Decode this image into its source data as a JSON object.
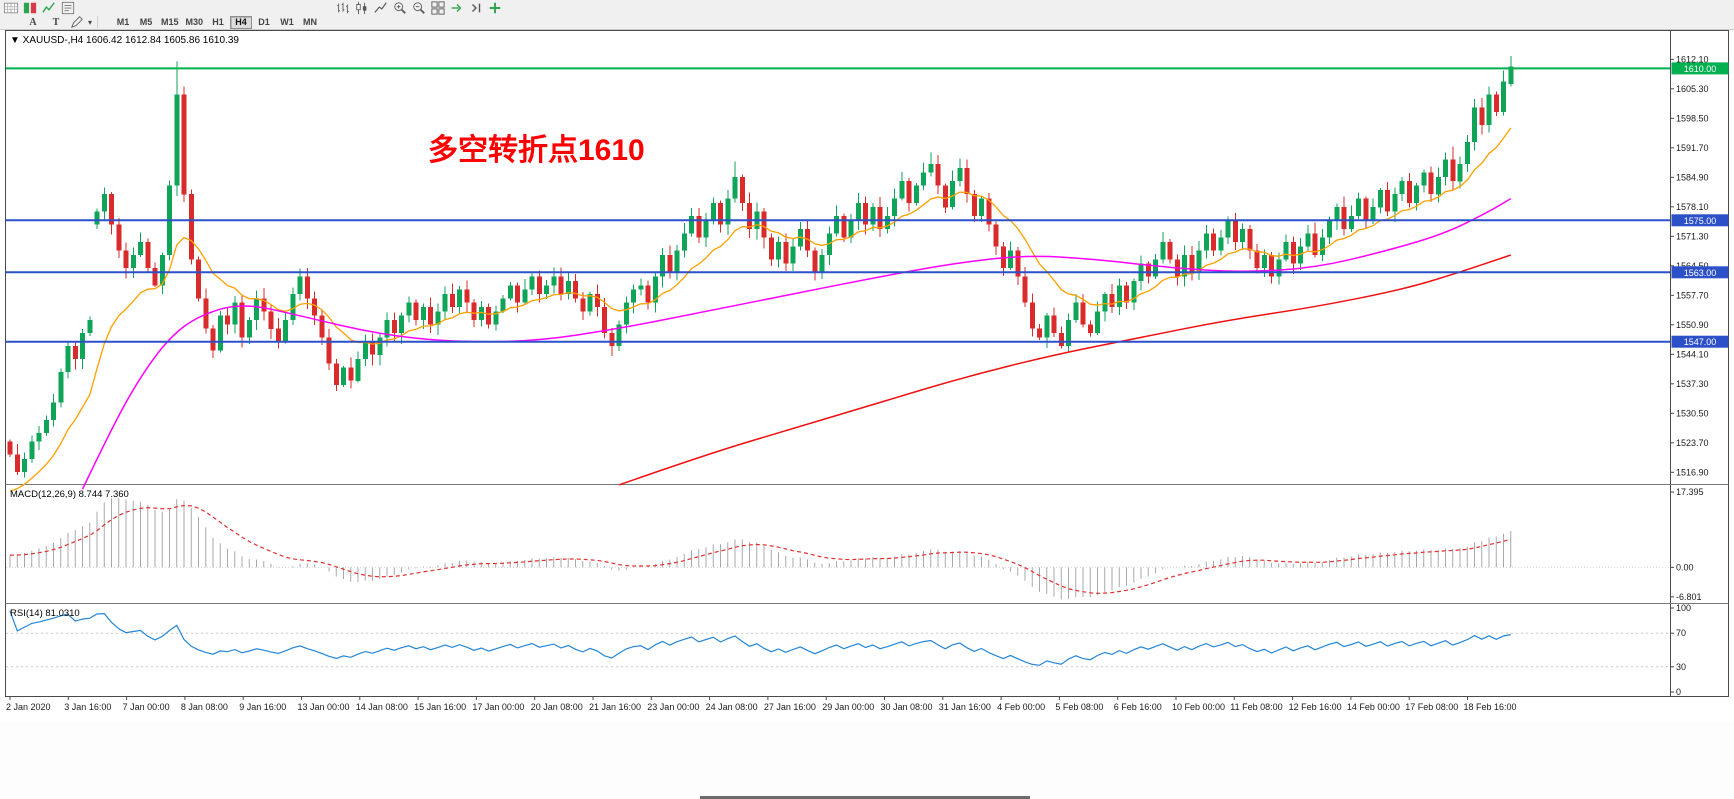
{
  "toolbar": {
    "row1_left": [
      "layout-grid",
      "new-order",
      "market-watch",
      "navigator"
    ],
    "row1_right": [
      "bar-chart",
      "candlestick-chart",
      "line-chart",
      "zoom-in",
      "zoom-out",
      "tile-windows",
      "auto-scroll",
      "chart-shift",
      "indicators"
    ],
    "text_tools": [
      {
        "id": "text-label-tool",
        "label": "A"
      },
      {
        "id": "text-tool",
        "label": "T"
      }
    ],
    "draw_tool_icon": "draw-pen",
    "dropdown_glyph": "▾",
    "timeframes": [
      "M1",
      "M5",
      "M15",
      "M30",
      "H1",
      "H4",
      "D1",
      "W1",
      "MN"
    ],
    "selected_timeframe": "H4"
  },
  "chart_data": {
    "type": "candlestick",
    "symbol": "XAUUSD",
    "timeframe": "H4",
    "info": {
      "marker": "▼",
      "symbol": "XAUUSD-,H4",
      "open": "1606.42",
      "high": "1612.84",
      "low": "1605.86",
      "close": "1610.39"
    },
    "annotation": {
      "text": "多空转折点1610",
      "color": "#ff0000"
    },
    "ylim": [
      1514.2,
      1618.4
    ],
    "price_ticks": [
      "1612.10",
      "1605.30",
      "1598.50",
      "1591.70",
      "1584.90",
      "1578.10",
      "1571.30",
      "1564.50",
      "1557.70",
      "1550.90",
      "1544.10",
      "1537.30",
      "1530.50",
      "1523.70",
      "1516.90"
    ],
    "hlines": [
      {
        "label": "1610.00",
        "value": 1610.0,
        "color": "green"
      },
      {
        "label": "1575.00",
        "value": 1575.0,
        "color": "blue"
      },
      {
        "label": "1563.00",
        "value": 1563.0,
        "color": "blue"
      },
      {
        "label": "1547.00",
        "value": 1547.0,
        "color": "blue"
      }
    ],
    "x_labels": [
      "2 Jan 2020",
      "3 Jan 16:00",
      "7 Jan 00:00",
      "8 Jan 08:00",
      "9 Jan 16:00",
      "13 Jan 00:00",
      "14 Jan 08:00",
      "15 Jan 16:00",
      "17 Jan 00:00",
      "20 Jan 08:00",
      "21 Jan 16:00",
      "23 Jan 00:00",
      "24 Jan 08:00",
      "27 Jan 16:00",
      "29 Jan 00:00",
      "30 Jan 08:00",
      "31 Jan 16:00",
      "4 Feb 00:00",
      "5 Feb 08:00",
      "6 Feb 16:00",
      "10 Feb 00:00",
      "11 Feb 08:00",
      "12 Feb 16:00",
      "14 Feb 00:00",
      "17 Feb 08:00",
      "18 Feb 16:00"
    ],
    "closes": [
      1521,
      1517,
      1520,
      1524,
      1526,
      1529,
      1533,
      1540,
      1546,
      1543,
      1549,
      1552,
      1577,
      1581,
      1574,
      1568,
      1564,
      1567,
      1570,
      1564,
      1560,
      1567,
      1583,
      1604,
      1581,
      1566,
      1557,
      1550,
      1545,
      1553,
      1551,
      1556,
      1548,
      1552,
      1557,
      1554,
      1550,
      1547,
      1552,
      1558,
      1562,
      1557,
      1553,
      1548,
      1542,
      1537,
      1541,
      1538,
      1543,
      1547,
      1544,
      1548,
      1552,
      1549,
      1553,
      1556,
      1552,
      1555,
      1551,
      1554,
      1558,
      1555,
      1559,
      1556,
      1552,
      1555,
      1551,
      1554,
      1557,
      1560,
      1556,
      1559,
      1562,
      1558,
      1560,
      1562,
      1558,
      1561,
      1557,
      1554,
      1558,
      1555,
      1549,
      1546,
      1551,
      1556,
      1559,
      1560,
      1556,
      1562,
      1567,
      1563,
      1568,
      1572,
      1576,
      1571,
      1575,
      1579,
      1574,
      1580,
      1585,
      1579,
      1573,
      1577,
      1571,
      1566,
      1570,
      1565,
      1569,
      1573,
      1568,
      1563,
      1567,
      1572,
      1576,
      1571,
      1575,
      1579,
      1574,
      1578,
      1573,
      1576,
      1580,
      1584,
      1579,
      1583,
      1586,
      1588,
      1583,
      1578,
      1584,
      1587,
      1581,
      1576,
      1580,
      1574,
      1569,
      1564,
      1568,
      1562,
      1556,
      1550,
      1548,
      1553,
      1549,
      1546,
      1552,
      1556,
      1551,
      1549,
      1554,
      1558,
      1555,
      1560,
      1556,
      1561,
      1565,
      1562,
      1566,
      1570,
      1566,
      1562,
      1567,
      1563,
      1568,
      1572,
      1568,
      1571,
      1575,
      1570,
      1573,
      1568,
      1564,
      1567,
      1562,
      1566,
      1570,
      1565,
      1569,
      1572,
      1567,
      1571,
      1575,
      1578,
      1573,
      1576,
      1580,
      1575,
      1578,
      1582,
      1577,
      1581,
      1584,
      1579,
      1583,
      1586,
      1581,
      1585,
      1589,
      1584,
      1588,
      1593,
      1601,
      1597,
      1604,
      1600,
      1607,
      1610.4
    ],
    "overrides": {
      "1": {
        "low": 1516.3
      },
      "12": {
        "open": 1574
      },
      "23": {
        "high": 1611.6
      },
      "45": {
        "low": 1535.6
      },
      "47": {
        "low": 1536.2
      },
      "100": {
        "high": 1588.6
      },
      "127": {
        "high": 1590.6
      },
      "131": {
        "high": 1589.2
      },
      "199": {
        "high": 1592.0
      },
      "207": {
        "open": 1606.42,
        "high": 1612.84,
        "low": 1605.86
      }
    },
    "pre_history": {
      "start": 1448,
      "end": 1515,
      "bars": 150,
      "wave": 3
    },
    "ma": {
      "orange_period": 13,
      "magenta_points": [
        [
          10,
          1513
        ],
        [
          14,
          1527
        ],
        [
          18,
          1539
        ],
        [
          22,
          1548
        ],
        [
          26,
          1553
        ],
        [
          32,
          1556
        ],
        [
          40,
          1553
        ],
        [
          50,
          1549
        ],
        [
          60,
          1547
        ],
        [
          72,
          1547
        ],
        [
          84,
          1550
        ],
        [
          96,
          1554
        ],
        [
          108,
          1558
        ],
        [
          120,
          1562
        ],
        [
          130,
          1565
        ],
        [
          140,
          1567
        ],
        [
          150,
          1566
        ],
        [
          160,
          1564
        ],
        [
          170,
          1563
        ],
        [
          180,
          1564
        ],
        [
          190,
          1568
        ],
        [
          198,
          1572
        ],
        [
          204,
          1577
        ],
        [
          207,
          1580
        ]
      ],
      "red_points": [
        [
          84,
          1514
        ],
        [
          96,
          1521
        ],
        [
          108,
          1527
        ],
        [
          120,
          1533
        ],
        [
          132,
          1539
        ],
        [
          144,
          1544
        ],
        [
          156,
          1548
        ],
        [
          168,
          1552
        ],
        [
          180,
          1555
        ],
        [
          192,
          1559
        ],
        [
          200,
          1563
        ],
        [
          207,
          1567
        ]
      ]
    },
    "macd": {
      "name": "MACD(12,26,9)",
      "values": "8.744 7.360",
      "ticks": [
        "17.395",
        "0.00",
        "-6.801"
      ],
      "range": [
        -8.0,
        18.8
      ]
    },
    "rsi": {
      "name": "RSI(14)",
      "value": "81.0310",
      "ticks": [
        "100",
        "70",
        "30",
        "0"
      ],
      "levels": [
        70,
        30
      ]
    },
    "colors": {
      "up": "#0fa558",
      "down": "#d92b2b",
      "ma_orange": "#ffa000",
      "ma_magenta": "#ff00ff",
      "ma_red": "#ef0f0f",
      "hline_green": "#00b050",
      "hline_blue": "#2b50c8",
      "rsi": "#2486d8",
      "macd_hist": "#a8a8a8",
      "macd_signal": "#e23030",
      "frame": "#4a4a4a",
      "panel_sep": "#7a7a7a",
      "axis_text": "#1a1a1a"
    }
  }
}
